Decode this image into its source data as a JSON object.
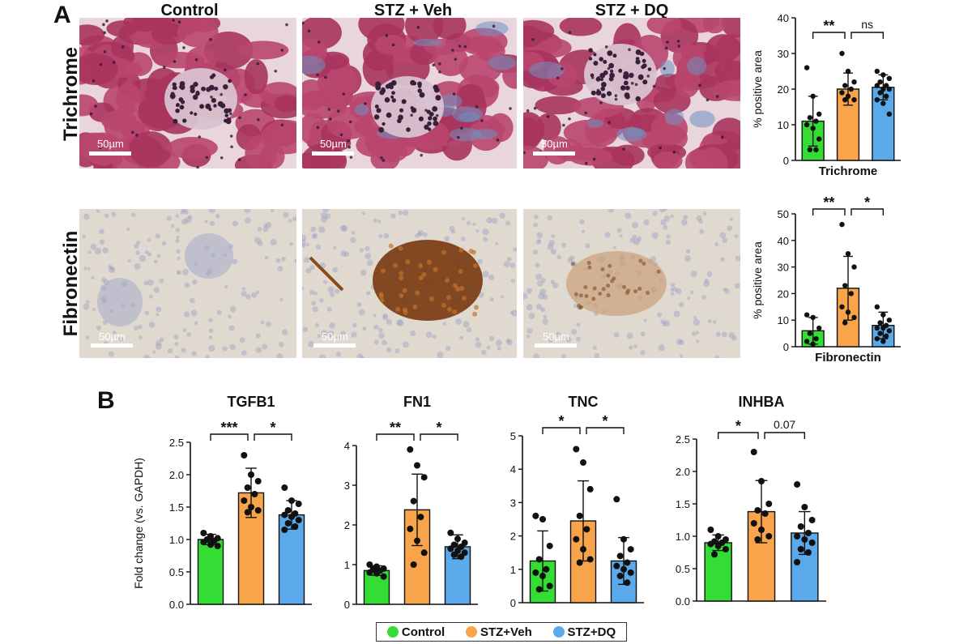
{
  "panel_labels": {
    "a": "A",
    "b": "B"
  },
  "columns": [
    "Control",
    "STZ + Veh",
    "STZ + DQ"
  ],
  "rows": [
    "Trichrome",
    "Fibronectin"
  ],
  "scale_bar_label": "50µm",
  "colors": {
    "control": "#33dd33",
    "stz_veh": "#f7a44a",
    "stz_dq": "#5aa9ea",
    "trichrome_base": "#b23a62",
    "fibronectin_base": "#dcd6cc",
    "fibronectin_stain": "#8a4a17"
  },
  "legend": [
    {
      "label": "Control",
      "color": "#33dd33"
    },
    {
      "label": "STZ+Veh",
      "color": "#f7a44a"
    },
    {
      "label": "STZ+DQ",
      "color": "#5aa9ea"
    }
  ],
  "chart_data": [
    {
      "id": "trichrome",
      "type": "bar",
      "title": "",
      "xlabel": "Trichrome",
      "ylabel": "% positive area",
      "ylim": [
        0,
        40
      ],
      "yticks": [
        0,
        10,
        20,
        30,
        40
      ],
      "categories": [
        "Control",
        "STZ+Veh",
        "STZ+DQ"
      ],
      "values": [
        11,
        20,
        20.5
      ],
      "errors": [
        7,
        4.5,
        3.5
      ],
      "points": [
        [
          26,
          18,
          13,
          12,
          11,
          10,
          9,
          6,
          3,
          3
        ],
        [
          30,
          25,
          22,
          21,
          20,
          19,
          18,
          17,
          17
        ],
        [
          25,
          24,
          23,
          22,
          21,
          21,
          20,
          20,
          19,
          18,
          17,
          16,
          13
        ]
      ],
      "brackets": [
        {
          "from": 0,
          "to": 1,
          "label": "**"
        },
        {
          "from": 1,
          "to": 2,
          "label": "ns"
        }
      ]
    },
    {
      "id": "fibronectin",
      "type": "bar",
      "title": "",
      "xlabel": "Fibronectin",
      "ylabel": "% positive area",
      "ylim": [
        0,
        50
      ],
      "yticks": [
        0,
        10,
        20,
        30,
        40,
        50
      ],
      "categories": [
        "Control",
        "STZ+Veh",
        "STZ+DQ"
      ],
      "values": [
        6,
        22,
        8
      ],
      "errors": [
        5,
        12,
        5
      ],
      "points": [
        [
          12,
          11,
          7,
          5,
          3,
          2,
          1
        ],
        [
          46,
          35,
          30,
          23,
          20,
          15,
          13,
          11,
          9
        ],
        [
          15,
          12,
          10,
          9,
          8,
          7,
          7,
          6,
          5,
          4,
          3,
          2
        ]
      ],
      "brackets": [
        {
          "from": 0,
          "to": 1,
          "label": "**"
        },
        {
          "from": 1,
          "to": 2,
          "label": "*"
        }
      ]
    },
    {
      "id": "tgfb1",
      "type": "bar",
      "title": "TGFB1",
      "xlabel": "",
      "ylabel": "Fold change (vs. GAPDH)",
      "ylim": [
        0,
        2.5
      ],
      "yticks": [
        "0.0",
        "0.5",
        "1.0",
        "1.5",
        "2.0",
        "2.5"
      ],
      "categories": [
        "Control",
        "STZ+Veh",
        "STZ+DQ"
      ],
      "values": [
        1.0,
        1.72,
        1.38
      ],
      "errors": [
        0.08,
        0.38,
        0.22
      ],
      "points": [
        [
          1.1,
          1.05,
          1.02,
          1.0,
          0.98,
          0.96,
          0.92,
          0.9
        ],
        [
          2.3,
          2.0,
          1.9,
          1.8,
          1.7,
          1.6,
          1.5,
          1.45,
          1.42
        ],
        [
          1.8,
          1.6,
          1.55,
          1.45,
          1.4,
          1.38,
          1.35,
          1.3,
          1.25,
          1.2,
          1.15
        ]
      ],
      "brackets": [
        {
          "from": 0,
          "to": 1,
          "label": "***"
        },
        {
          "from": 1,
          "to": 2,
          "label": "*"
        }
      ]
    },
    {
      "id": "fn1",
      "type": "bar",
      "title": "FN1",
      "xlabel": "",
      "ylabel": "",
      "ylim": [
        0,
        4
      ],
      "yticks": [
        0,
        1,
        2,
        3,
        4
      ],
      "categories": [
        "Control",
        "STZ+Veh",
        "STZ+DQ"
      ],
      "values": [
        0.85,
        2.38,
        1.45
      ],
      "errors": [
        0.12,
        0.9,
        0.3
      ],
      "points": [
        [
          1.0,
          0.95,
          0.9,
          0.88,
          0.85,
          0.8,
          0.78,
          0.7
        ],
        [
          3.9,
          3.5,
          3.2,
          2.6,
          2.2,
          1.9,
          1.6,
          1.3,
          1.0
        ],
        [
          1.8,
          1.65,
          1.55,
          1.5,
          1.45,
          1.4,
          1.35,
          1.3,
          1.25,
          1.2
        ]
      ],
      "brackets": [
        {
          "from": 0,
          "to": 1,
          "label": "**"
        },
        {
          "from": 1,
          "to": 2,
          "label": "*"
        }
      ]
    },
    {
      "id": "tnc",
      "type": "bar",
      "title": "TNC",
      "xlabel": "",
      "ylabel": "",
      "ylim": [
        0,
        5
      ],
      "yticks": [
        0,
        1,
        2,
        3,
        4,
        5
      ],
      "categories": [
        "Control",
        "STZ+Veh",
        "STZ+DQ"
      ],
      "values": [
        1.25,
        2.45,
        1.25
      ],
      "errors": [
        0.9,
        1.2,
        0.7
      ],
      "points": [
        [
          2.6,
          2.5,
          1.7,
          1.3,
          1.0,
          0.9,
          0.8,
          0.5,
          0.4
        ],
        [
          4.6,
          4.2,
          3.4,
          2.6,
          2.2,
          1.9,
          1.6,
          1.3,
          1.2
        ],
        [
          3.1,
          1.9,
          1.6,
          1.4,
          1.2,
          1.1,
          1.0,
          0.9,
          0.8,
          0.6
        ]
      ],
      "brackets": [
        {
          "from": 0,
          "to": 1,
          "label": "*"
        },
        {
          "from": 1,
          "to": 2,
          "label": "*"
        }
      ]
    },
    {
      "id": "inhba",
      "type": "bar",
      "title": "INHBA",
      "xlabel": "",
      "ylabel": "",
      "ylim": [
        0,
        2.5
      ],
      "yticks": [
        "0.0",
        "0.5",
        "1.0",
        "1.5",
        "2.0",
        "2.5"
      ],
      "categories": [
        "Control",
        "STZ+Veh",
        "STZ+DQ"
      ],
      "values": [
        0.9,
        1.38,
        1.05
      ],
      "errors": [
        0.12,
        0.48,
        0.33
      ],
      "points": [
        [
          1.1,
          1.0,
          0.95,
          0.92,
          0.9,
          0.88,
          0.85,
          0.8,
          0.72
        ],
        [
          2.3,
          1.85,
          1.5,
          1.4,
          1.35,
          1.2,
          1.1,
          1.0,
          0.95
        ],
        [
          1.8,
          1.45,
          1.25,
          1.15,
          1.05,
          1.0,
          0.95,
          0.9,
          0.8,
          0.75,
          0.6
        ]
      ],
      "brackets": [
        {
          "from": 0,
          "to": 1,
          "label": "*"
        },
        {
          "from": 1,
          "to": 2,
          "label": "0.07"
        }
      ]
    }
  ]
}
